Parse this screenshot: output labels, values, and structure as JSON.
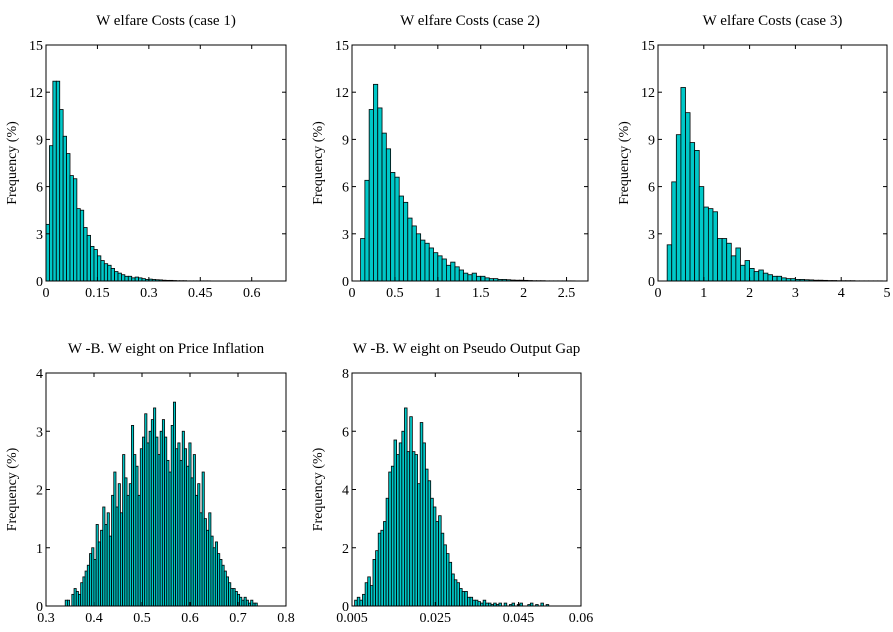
{
  "colors": {
    "bar_fill": "#00c8c8",
    "bar_stroke": "#000000",
    "frame": "#000000"
  },
  "chart_data": [
    {
      "type": "bar",
      "title": "W elfare Costs (case 1)",
      "xlabel": "",
      "ylabel": "Frequency (%)",
      "xlim": [
        0,
        0.7
      ],
      "ylim": [
        0,
        15
      ],
      "xticks": [
        0,
        0.15,
        0.3,
        0.45,
        0.6
      ],
      "xtick_labels": [
        "0",
        "0.15",
        "0.3",
        "0.45",
        "0.6"
      ],
      "yticks": [
        0,
        3,
        6,
        9,
        12,
        15
      ],
      "ytick_labels": [
        "0",
        "3",
        "6",
        "9",
        "12",
        "15"
      ],
      "bin_start": 0.0,
      "bin_width": 0.01,
      "values": [
        3.6,
        8.6,
        12.7,
        12.7,
        10.9,
        9.2,
        8.1,
        6.7,
        6.5,
        4.6,
        4.5,
        3.4,
        2.9,
        2.2,
        2.0,
        1.6,
        1.3,
        1.1,
        1.0,
        0.8,
        0.6,
        0.5,
        0.4,
        0.3,
        0.3,
        0.2,
        0.25,
        0.2,
        0.15,
        0.1,
        0.12,
        0.1,
        0.08,
        0.07,
        0.05,
        0.04,
        0.04,
        0.03,
        0.02,
        0.02,
        0.02,
        0.01,
        0.01,
        0.01,
        0.01,
        0.01,
        0.01,
        0.01
      ]
    },
    {
      "type": "bar",
      "title": "W elfare Costs (case 2)",
      "xlabel": "",
      "ylabel": "Frequency (%)",
      "xlim": [
        0,
        2.75
      ],
      "ylim": [
        0,
        15
      ],
      "xticks": [
        0,
        0.5,
        1,
        1.5,
        2,
        2.5
      ],
      "xtick_labels": [
        "0",
        "0.5",
        "1",
        "1.5",
        "2",
        "2.5"
      ],
      "yticks": [
        0,
        3,
        6,
        9,
        12,
        15
      ],
      "ytick_labels": [
        "0",
        "3",
        "6",
        "9",
        "12",
        "15"
      ],
      "bin_start": 0.1,
      "bin_width": 0.05,
      "values": [
        2.7,
        6.4,
        10.9,
        12.5,
        11.0,
        9.4,
        8.4,
        6.9,
        6.6,
        5.4,
        5.0,
        4.0,
        3.5,
        3.0,
        2.6,
        2.4,
        2.1,
        1.8,
        1.6,
        1.4,
        1.0,
        1.2,
        0.9,
        0.7,
        0.5,
        0.4,
        0.5,
        0.3,
        0.3,
        0.2,
        0.15,
        0.15,
        0.1,
        0.1,
        0.08,
        0.06,
        0.05,
        0.05,
        0.04,
        0.03,
        0.02,
        0.02,
        0.02,
        0.01,
        0.01,
        0.01,
        0.01,
        0.01,
        0.01,
        0.01
      ]
    },
    {
      "type": "bar",
      "title": "W elfare Costs (case 3)",
      "xlabel": "",
      "ylabel": "Frequency (%)",
      "xlim": [
        0,
        5
      ],
      "ylim": [
        0,
        15
      ],
      "xticks": [
        0,
        1,
        2,
        3,
        4,
        5
      ],
      "xtick_labels": [
        "0",
        "1",
        "2",
        "3",
        "4",
        "5"
      ],
      "yticks": [
        0,
        3,
        6,
        9,
        12,
        15
      ],
      "ytick_labels": [
        "0",
        "3",
        "6",
        "9",
        "12",
        "15"
      ],
      "bin_start": 0.2,
      "bin_width": 0.1,
      "values": [
        2.3,
        6.3,
        9.3,
        12.3,
        10.7,
        8.8,
        8.3,
        6.0,
        4.7,
        4.6,
        4.4,
        2.7,
        2.7,
        2.4,
        1.6,
        2.1,
        1.0,
        1.3,
        0.8,
        0.6,
        0.7,
        0.5,
        0.4,
        0.3,
        0.3,
        0.2,
        0.15,
        0.15,
        0.1,
        0.1,
        0.08,
        0.07,
        0.05,
        0.05,
        0.04,
        0.03,
        0.03,
        0.02,
        0.02,
        0.02,
        0.02,
        0.01,
        0.01,
        0.01,
        0.01,
        0.01,
        0.01
      ]
    },
    {
      "type": "bar",
      "title": "W -B. W eight on Price Inflation",
      "xlabel": "",
      "ylabel": "Frequency (%)",
      "xlim": [
        0.3,
        0.8
      ],
      "ylim": [
        0,
        4
      ],
      "xticks": [
        0.3,
        0.4,
        0.5,
        0.6,
        0.7,
        0.8
      ],
      "xtick_labels": [
        "0.3",
        "0.4",
        "0.5",
        "0.6",
        "0.7",
        "0.8"
      ],
      "yticks": [
        0,
        1,
        2,
        3,
        4
      ],
      "ytick_labels": [
        "0",
        "1",
        "2",
        "3",
        "4"
      ],
      "bin_start": 0.34,
      "bin_width": 0.0046,
      "values": [
        0.1,
        0.1,
        0.0,
        0.2,
        0.3,
        0.25,
        0.2,
        0.4,
        0.5,
        0.6,
        0.7,
        0.9,
        1.0,
        0.8,
        1.4,
        1.1,
        1.3,
        1.7,
        1.4,
        1.6,
        1.2,
        1.9,
        2.3,
        1.7,
        2.1,
        1.6,
        2.6,
        2.2,
        1.9,
        2.1,
        3.1,
        2.6,
        2.4,
        1.9,
        2.7,
        2.9,
        3.3,
        2.8,
        3.0,
        3.2,
        3.4,
        2.9,
        2.6,
        3.0,
        3.2,
        2.9,
        2.5,
        2.3,
        3.1,
        3.5,
        2.7,
        2.8,
        2.5,
        3.0,
        2.7,
        2.4,
        2.8,
        2.2,
        2.6,
        1.9,
        2.1,
        1.6,
        2.3,
        1.5,
        1.3,
        1.6,
        1.2,
        1.0,
        1.1,
        0.9,
        0.8,
        0.7,
        0.6,
        0.5,
        0.4,
        0.3,
        0.3,
        0.25,
        0.2,
        0.15,
        0.1,
        0.15,
        0.1,
        0.05,
        0.1,
        0.05,
        0.05
      ]
    },
    {
      "type": "bar",
      "title": "W -B. W eight on Pseudo Output Gap",
      "xlabel": "",
      "ylabel": "Frequency (%)",
      "xlim": [
        0.005,
        0.06
      ],
      "ylim": [
        0,
        8
      ],
      "xticks": [
        0.005,
        0.025,
        0.045,
        0.06
      ],
      "xtick_labels": [
        "0.005",
        "0.025",
        "0.045",
        "0.06"
      ],
      "yticks": [
        0,
        2,
        4,
        6,
        8
      ],
      "ytick_labels": [
        "0",
        "2",
        "4",
        "6",
        "8"
      ],
      "bin_start": 0.005,
      "bin_width": 0.00063,
      "values": [
        0.0,
        0.2,
        0.3,
        0.2,
        0.4,
        0.8,
        1.0,
        0.7,
        1.6,
        1.9,
        2.5,
        2.6,
        2.9,
        3.7,
        4.6,
        4.8,
        5.7,
        5.2,
        5.6,
        6.0,
        6.8,
        5.3,
        6.5,
        5.3,
        5.2,
        4.2,
        6.3,
        5.6,
        4.7,
        4.3,
        3.7,
        3.4,
        2.9,
        3.1,
        2.5,
        2.1,
        1.8,
        1.5,
        1.1,
        0.9,
        0.8,
        0.6,
        0.5,
        0.5,
        0.3,
        0.3,
        0.2,
        0.2,
        0.15,
        0.1,
        0.2,
        0.1,
        0.1,
        0.05,
        0.1,
        0.05,
        0.1,
        0.0,
        0.1,
        0.0,
        0.05,
        0.1,
        0.0,
        0.05,
        0.1,
        0.0,
        0.0,
        0.05,
        0.1,
        0.0,
        0.05,
        0.0,
        0.1,
        0.0,
        0.05
      ]
    }
  ]
}
